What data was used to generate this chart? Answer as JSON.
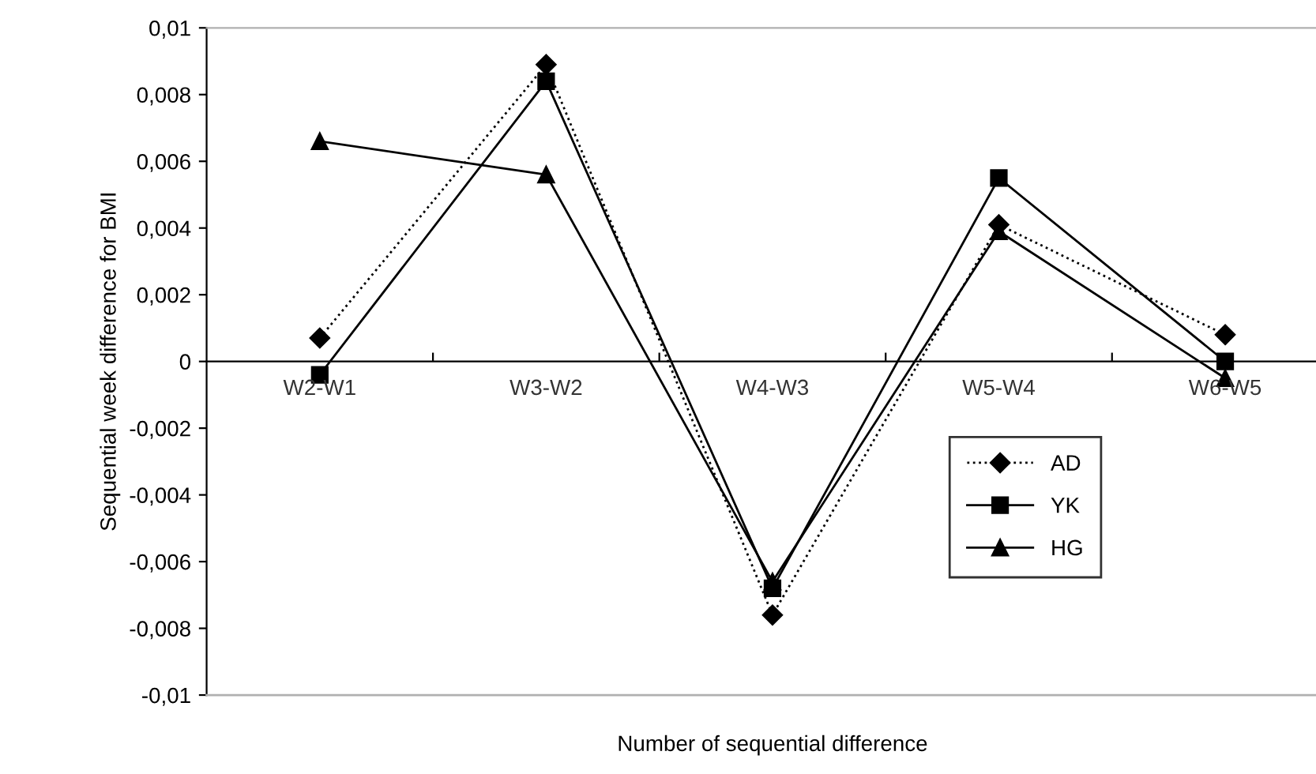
{
  "chart_data": {
    "type": "line",
    "xlabel": "Number of sequential difference",
    "ylabel": "Sequential week difference for BMI",
    "categories": [
      "W2-W1",
      "W3-W2",
      "W4-W3",
      "W5-W4",
      "W6-W5"
    ],
    "series": [
      {
        "name": "AD",
        "color": "#000000",
        "marker": "diamond",
        "line_style": "dotted",
        "values": [
          0.0007,
          0.0089,
          -0.0076,
          0.0041,
          0.0008
        ]
      },
      {
        "name": "YK",
        "color": "#000000",
        "marker": "square",
        "line_style": "solid",
        "values": [
          -0.0004,
          0.0084,
          -0.0068,
          0.0055,
          0.0
        ]
      },
      {
        "name": "HG",
        "color": "#000000",
        "marker": "triangle",
        "line_style": "solid",
        "values": [
          0.0066,
          0.0056,
          -0.0066,
          0.0039,
          -0.0005
        ]
      }
    ],
    "ylim": [
      -0.01,
      0.01
    ],
    "yticks": [
      {
        "value": -0.01,
        "label": "-0,01"
      },
      {
        "value": -0.008,
        "label": "-0,008"
      },
      {
        "value": -0.006,
        "label": "-0,006"
      },
      {
        "value": -0.004,
        "label": "-0,004"
      },
      {
        "value": -0.002,
        "label": "-0,002"
      },
      {
        "value": 0,
        "label": "0"
      },
      {
        "value": 0.002,
        "label": "0,002"
      },
      {
        "value": 0.004,
        "label": "0,004"
      },
      {
        "value": 0.006,
        "label": "0,006"
      },
      {
        "value": 0.008,
        "label": "0,008"
      },
      {
        "value": 0.01,
        "label": "0,01"
      }
    ],
    "grid": false,
    "legend": "bottom right"
  }
}
